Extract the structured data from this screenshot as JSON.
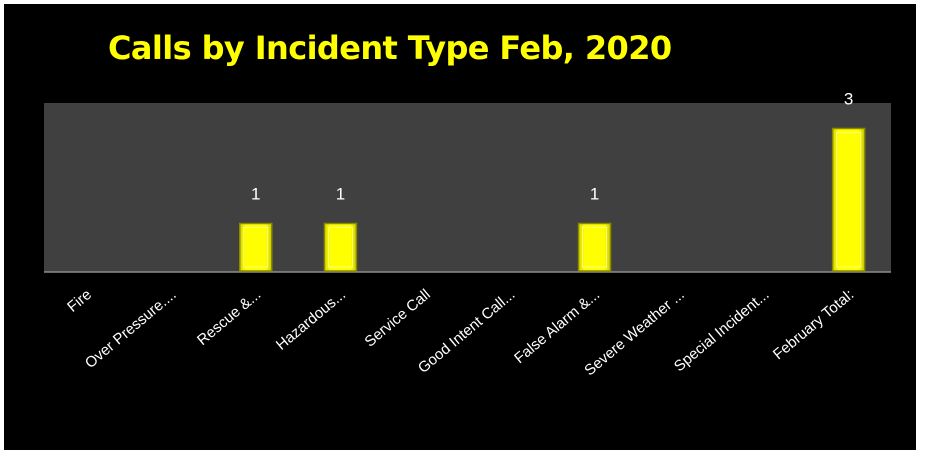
{
  "chart_data": {
    "type": "bar",
    "title": "Calls by Incident Type Feb, 2020",
    "xlabel": "",
    "ylabel": "",
    "categories": [
      "Fire",
      "Over Pressure....",
      "Rescue &...",
      "Hazardous...",
      "Service Call",
      "Good Intent Call...",
      "False Alarm &...",
      "Severe Weather ...",
      "Special Incident...",
      "February Total:"
    ],
    "values": [
      0,
      0,
      1,
      1,
      0,
      0,
      1,
      0,
      0,
      3
    ],
    "data_labels": [
      "",
      "",
      "1",
      "1",
      "",
      "",
      "1",
      "",
      "",
      "3"
    ],
    "ylim": [
      0,
      3
    ],
    "grid": false,
    "legend": "none",
    "colors": {
      "background": "#000000",
      "plot_area": "#404040",
      "bar": "#ffff00",
      "title": "#ffff00",
      "text": "#ffffff"
    }
  }
}
